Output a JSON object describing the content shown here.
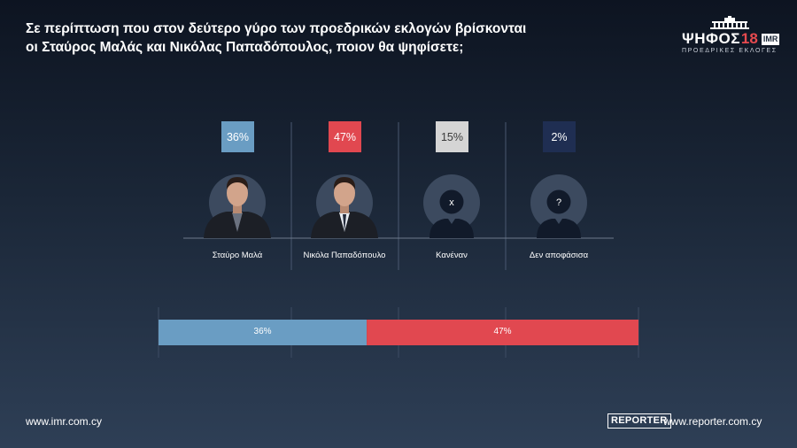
{
  "title_line1": "Σε περίπτωση που στον δεύτερο γύρο των προεδρικών εκλογών βρίσκονται",
  "title_line2": "οι Σταύρος Μαλάς και Νικόλας Παπαδόπουλος, ποιον θα ψηφίσετε;",
  "logo": {
    "main": "ΨΗΦΟΣ",
    "number": "18",
    "badge": "IMR",
    "sub": "ΠΡΟΕΔΡΙΚΕΣ ΕΚΛΟΓΕΣ"
  },
  "footer": {
    "left": "www.imr.com.cy",
    "reporter_logo": "REPORTER",
    "right": "www.reporter.com.cy"
  },
  "chart_data": [
    {
      "type": "bar",
      "categories": [
        "Σταύρο Μαλά",
        "Νικόλα Παπαδόπουλο",
        "Κανέναν",
        "Δεν αποφάσισα"
      ],
      "values": [
        36,
        47,
        15,
        2
      ],
      "value_labels": [
        "36%",
        "47%",
        "15%",
        "2%"
      ],
      "colors": [
        "#6a9dc3",
        "#e14850",
        "#d5d5d5",
        "#1f2e52"
      ],
      "label_colors": [
        "#ffffff",
        "#ffffff",
        "#3a3a3a",
        "#ffffff"
      ],
      "avatars": [
        "photo",
        "photo",
        "silhouette-x",
        "silhouette-question"
      ],
      "avatar_marks": [
        "",
        "",
        "x",
        "?"
      ],
      "unit": "%"
    },
    {
      "type": "bar",
      "orientation": "horizontal-stacked",
      "series": [
        {
          "name": "Σταύρο Μαλά",
          "value": 36,
          "label": "36%",
          "color": "#6a9dc3"
        },
        {
          "name": "Νικόλα Παπαδόπουλο",
          "value": 47,
          "label": "47%",
          "color": "#e14850"
        }
      ],
      "xlim": [
        0,
        83
      ]
    }
  ]
}
